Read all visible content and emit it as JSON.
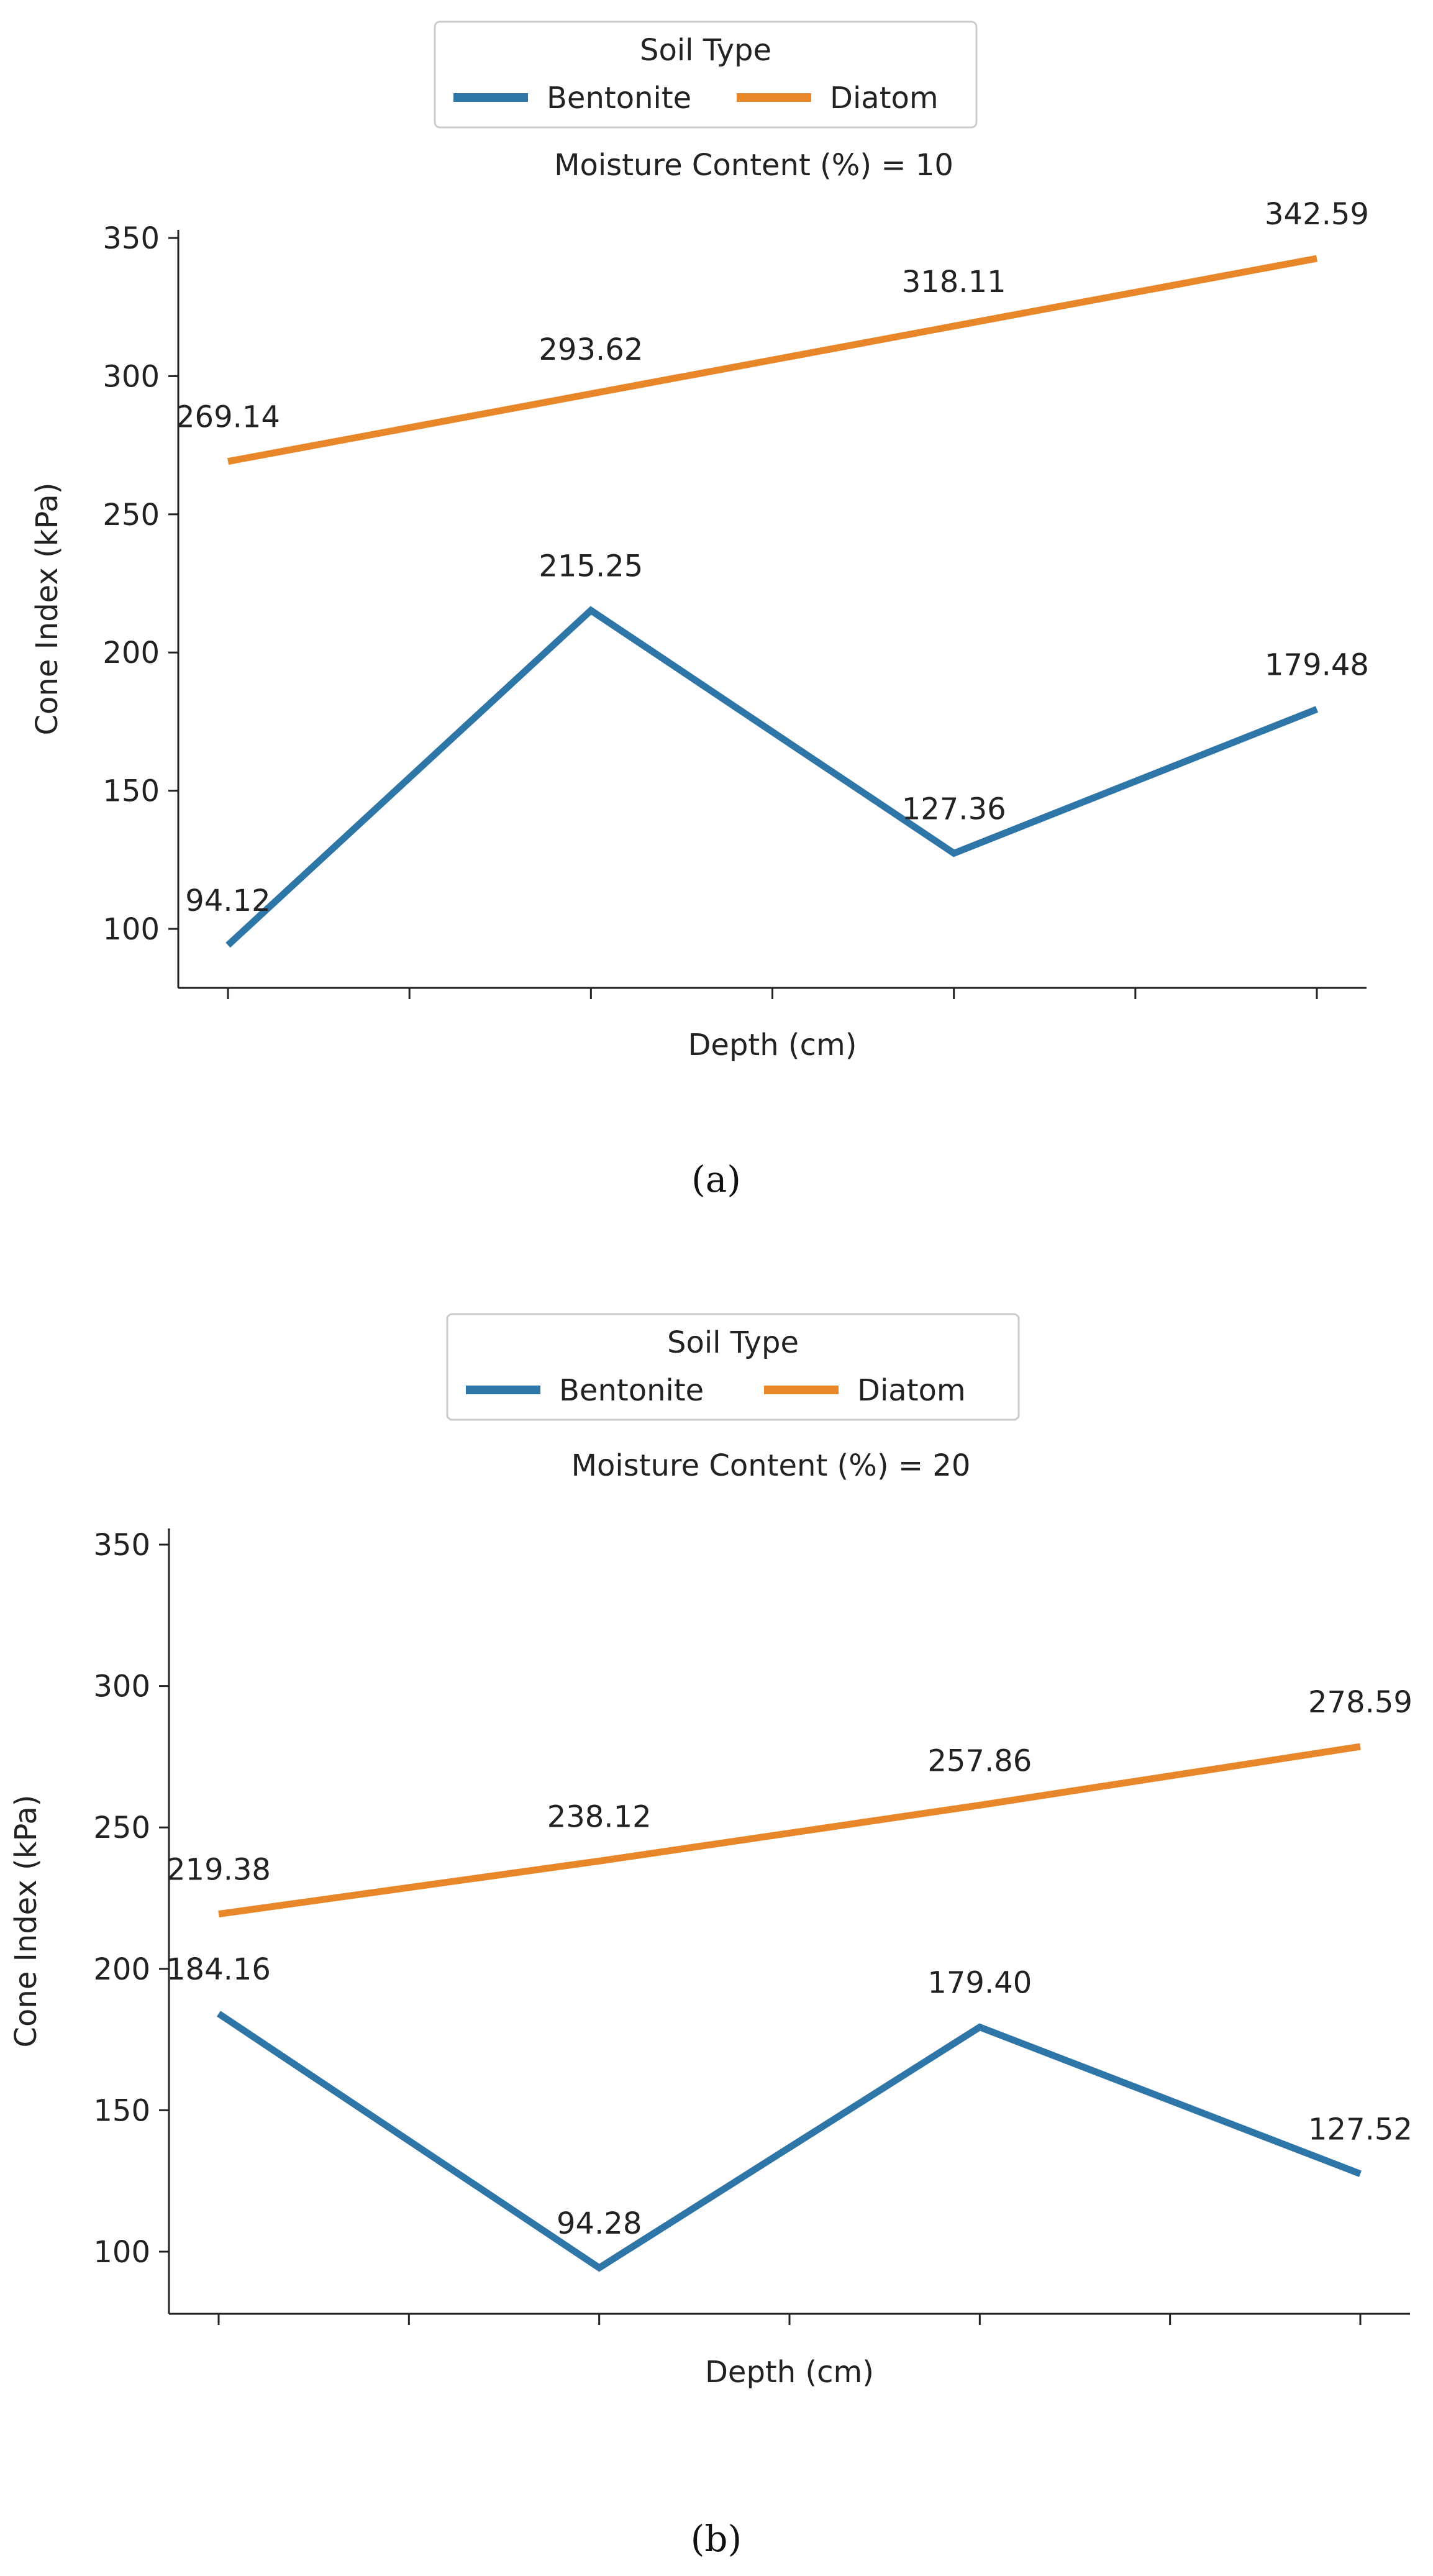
{
  "chart_data": [
    {
      "type": "line",
      "panel": "(a)",
      "title": "Moisture Content (%) = 10",
      "xlabel": "Depth (cm)",
      "ylabel": "Cone Index (kPa)",
      "ylim": [
        80,
        355
      ],
      "yticks": [
        100,
        150,
        200,
        250,
        300,
        350
      ],
      "x_positions": [
        0,
        1,
        2,
        3,
        4,
        5,
        6
      ],
      "legend": {
        "title": "Soil Type",
        "placement": "top-center"
      },
      "series": [
        {
          "name": "Bentonite",
          "color": "#2e75a8",
          "x": [
            0,
            2,
            4,
            6
          ],
          "values": [
            94.12,
            215.25,
            127.36,
            179.48
          ],
          "labels": [
            "94.12",
            "215.25",
            "127.36",
            "179.48"
          ]
        },
        {
          "name": "Diatom",
          "color": "#e8862a",
          "x": [
            0,
            2,
            4,
            6
          ],
          "values": [
            269.14,
            293.62,
            318.11,
            342.59
          ],
          "labels": [
            "269.14",
            "293.62",
            "318.11",
            "342.59"
          ]
        }
      ]
    },
    {
      "type": "line",
      "panel": "(b)",
      "title": "Moisture Content (%) = 20",
      "xlabel": "Depth (cm)",
      "ylabel": "Cone Index (kPa)",
      "ylim": [
        80,
        355
      ],
      "yticks": [
        100,
        150,
        200,
        250,
        300,
        350
      ],
      "x_positions": [
        0,
        1,
        2,
        3,
        4,
        5,
        6
      ],
      "legend": {
        "title": "Soil Type",
        "placement": "top-center"
      },
      "series": [
        {
          "name": "Bentonite",
          "color": "#2e75a8",
          "x": [
            0,
            2,
            4,
            6
          ],
          "values": [
            184.16,
            94.28,
            179.4,
            127.52
          ],
          "labels": [
            "184.16",
            "94.28",
            "179.40",
            "127.52"
          ]
        },
        {
          "name": "Diatom",
          "color": "#e8862a",
          "x": [
            0,
            2,
            4,
            6
          ],
          "values": [
            219.38,
            238.12,
            257.86,
            278.59
          ],
          "labels": [
            "219.38",
            "238.12",
            "257.86",
            "278.59"
          ]
        }
      ]
    }
  ]
}
